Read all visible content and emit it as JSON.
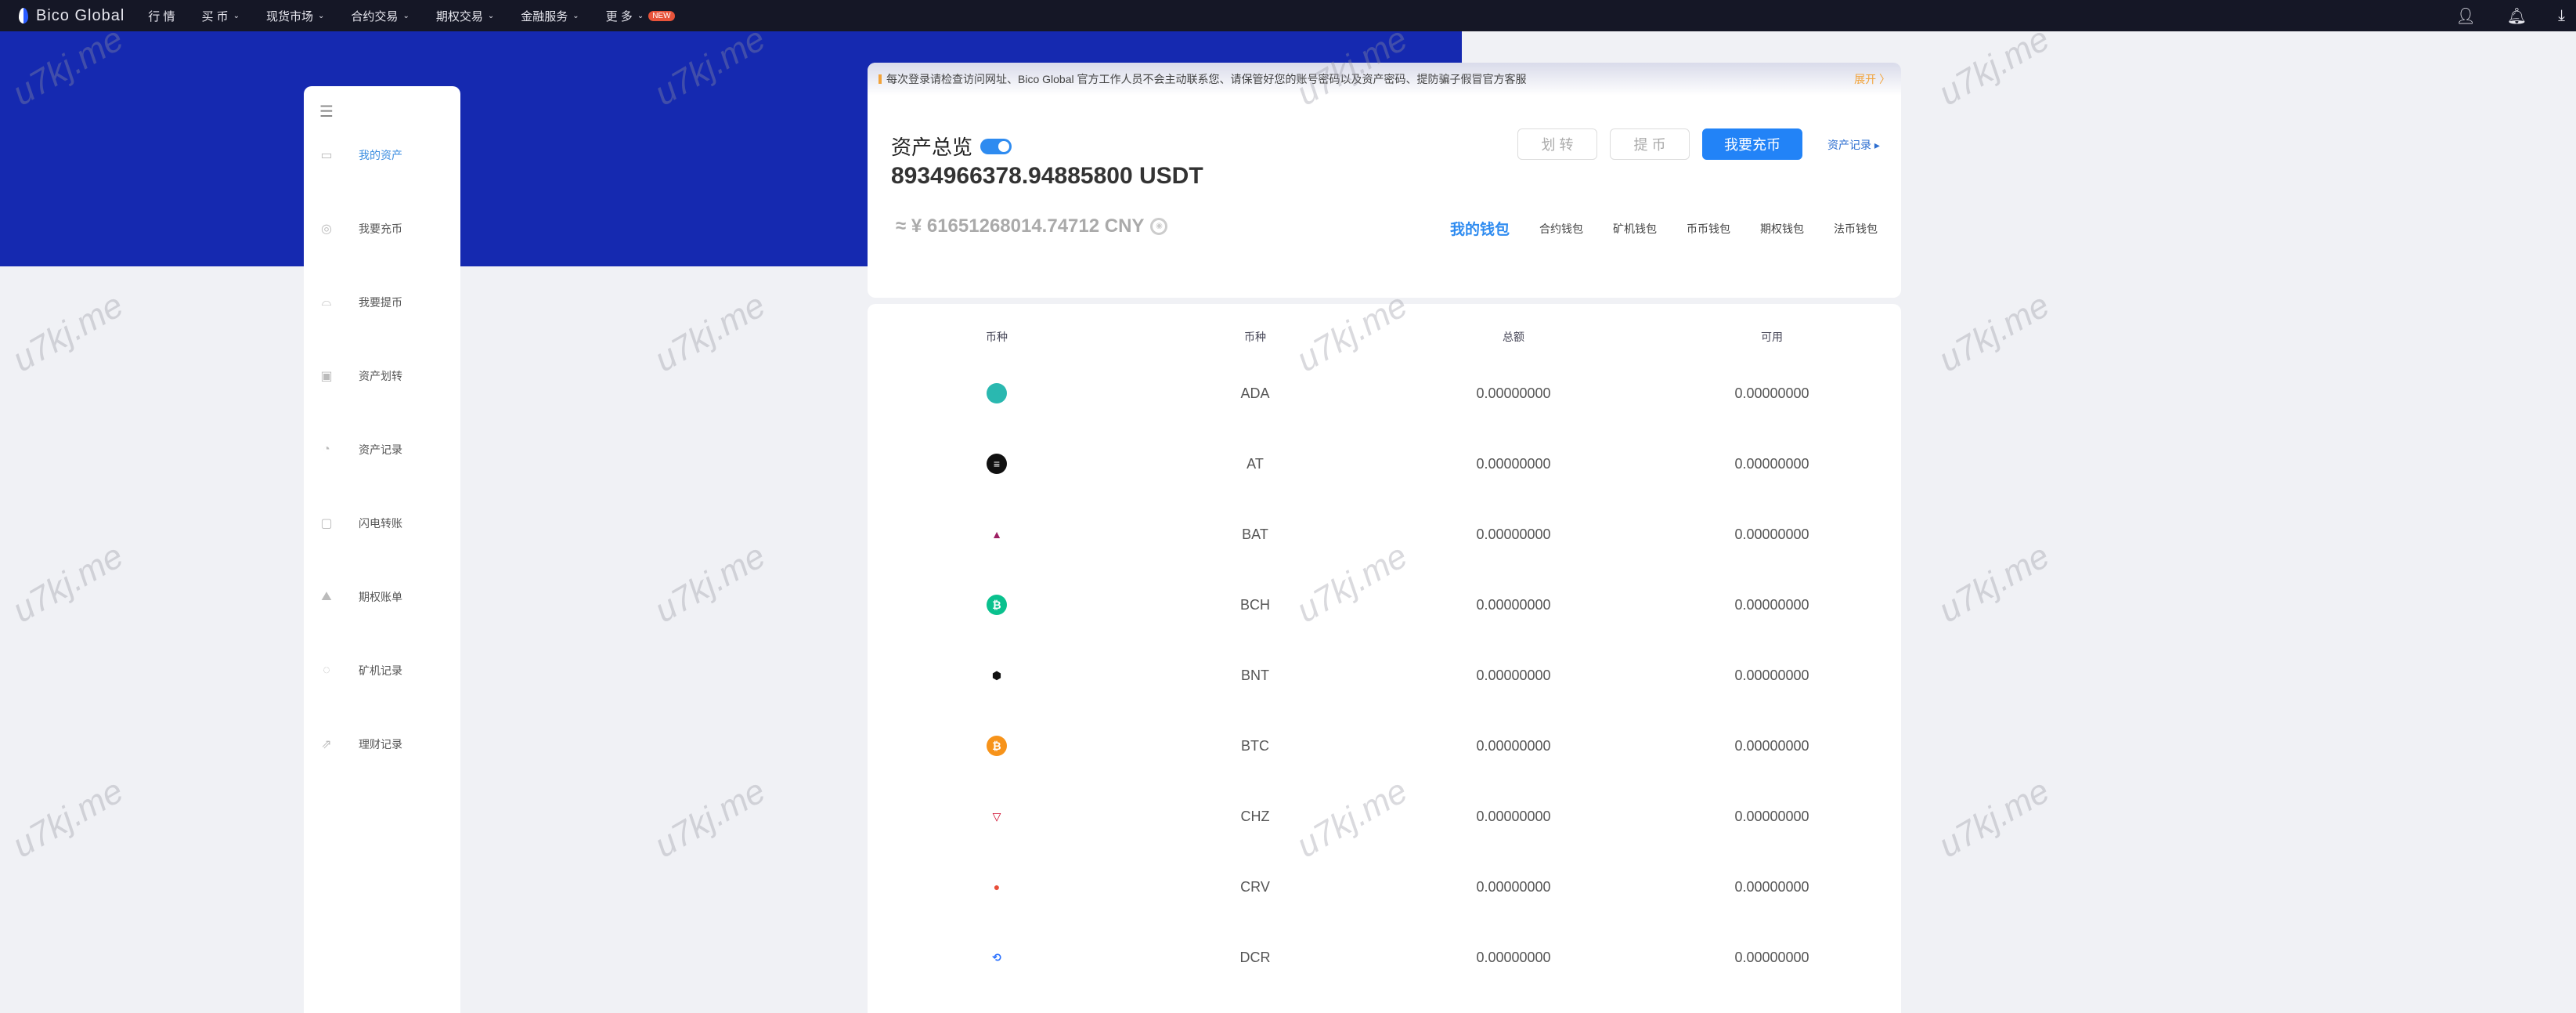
{
  "nav": {
    "brand": "Bico Global",
    "items": [
      {
        "label": "行 情",
        "dd": false
      },
      {
        "label": "买 币",
        "dd": true
      },
      {
        "label": "现货市场",
        "dd": true
      },
      {
        "label": "合约交易",
        "dd": true
      },
      {
        "label": "期权交易",
        "dd": true
      },
      {
        "label": "金融服务",
        "dd": true
      },
      {
        "label": "更 多",
        "dd": true,
        "badge": "NEW"
      }
    ]
  },
  "sidebar": {
    "items": [
      {
        "label": "我的资产",
        "icon": "wallet-icon",
        "active": true
      },
      {
        "label": "我要充币",
        "icon": "deposit-icon"
      },
      {
        "label": "我要提币",
        "icon": "withdraw-icon"
      },
      {
        "label": "资产划转",
        "icon": "transfer-icon"
      },
      {
        "label": "资产记录",
        "icon": "record-icon"
      },
      {
        "label": "闪电转账",
        "icon": "flash-transfer-icon"
      },
      {
        "label": "期权账单",
        "icon": "options-bill-icon"
      },
      {
        "label": "矿机记录",
        "icon": "miner-icon"
      },
      {
        "label": "理财记录",
        "icon": "finance-icon"
      }
    ]
  },
  "notice": {
    "text": "每次登录请检查访问网址、Bico Global 官方工作人员不会主动联系您、请保管好您的账号密码以及资产密码、提防骗子假冒官方客服",
    "expand": "展开 〉"
  },
  "overview": {
    "title": "资产总览",
    "usdt": "8934966378.94885800 USDT",
    "cny": "≈ ¥ 61651268014.74712 CNY",
    "transfer": "划 转",
    "withdraw": "提 币",
    "deposit": "我要充币",
    "records": "资产记录 ▸"
  },
  "wallet_tabs": [
    "我的钱包",
    "合约钱包",
    "矿机钱包",
    "币币钱包",
    "期权钱包",
    "法币钱包"
  ],
  "table": {
    "headers": [
      "币种",
      "币种",
      "总额",
      "可用"
    ],
    "rows": [
      {
        "coin": "ADA",
        "total": "0.00000000",
        "available": "0.00000000",
        "color": "#2ab8b0",
        "glyph": "✺"
      },
      {
        "coin": "AT",
        "total": "0.00000000",
        "available": "0.00000000",
        "color": "#111111",
        "glyph": "≡"
      },
      {
        "coin": "BAT",
        "total": "0.00000000",
        "available": "0.00000000",
        "color": "#ffffff",
        "glyph": "▲"
      },
      {
        "coin": "BCH",
        "total": "0.00000000",
        "available": "0.00000000",
        "color": "#0ac18e",
        "glyph": "₿"
      },
      {
        "coin": "BNT",
        "total": "0.00000000",
        "available": "0.00000000",
        "color": "#ffffff",
        "glyph": "⬢"
      },
      {
        "coin": "BTC",
        "total": "0.00000000",
        "available": "0.00000000",
        "color": "#f7931a",
        "glyph": "₿"
      },
      {
        "coin": "CHZ",
        "total": "0.00000000",
        "available": "0.00000000",
        "color": "#ffffff",
        "glyph": "▽"
      },
      {
        "coin": "CRV",
        "total": "0.00000000",
        "available": "0.00000000",
        "color": "#ffffff",
        "glyph": "●"
      },
      {
        "coin": "DCR",
        "total": "0.00000000",
        "available": "0.00000000",
        "color": "#ffffff",
        "glyph": "⟲"
      }
    ]
  },
  "watermark": "u7kj.me"
}
